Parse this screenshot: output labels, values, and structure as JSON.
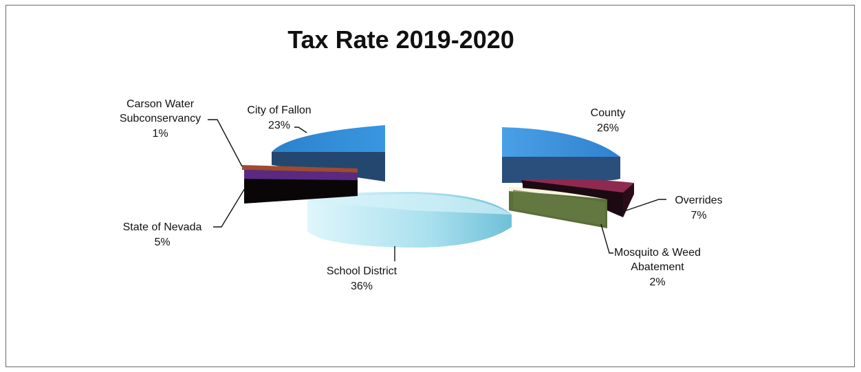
{
  "chart_data": {
    "type": "pie",
    "title": "Tax Rate 2019-2020",
    "style": "3d-exploded",
    "slices": [
      {
        "label_lines": [
          "County"
        ],
        "percent_label": "26%",
        "value": 26,
        "color": "#3a8fd8"
      },
      {
        "label_lines": [
          "Overrides"
        ],
        "percent_label": "7%",
        "value": 7,
        "color": "#8e2a50"
      },
      {
        "label_lines": [
          "Mosquito & Weed",
          "Abatement"
        ],
        "percent_label": "2%",
        "value": 2,
        "color": "#f6f4dc"
      },
      {
        "label_lines": [
          "School District"
        ],
        "percent_label": "36%",
        "value": 36,
        "color": "#a8dff0"
      },
      {
        "label_lines": [
          "State of Nevada"
        ],
        "percent_label": "5%",
        "value": 5,
        "color": "#5a2a82"
      },
      {
        "label_lines": [
          "Carson Water",
          "Subconservancy"
        ],
        "percent_label": "1%",
        "value": 1,
        "color": "#a04a2e"
      },
      {
        "label_lines": [
          "City of Fallon"
        ],
        "percent_label": "23%",
        "value": 23,
        "color": "#2a88d0"
      }
    ]
  }
}
